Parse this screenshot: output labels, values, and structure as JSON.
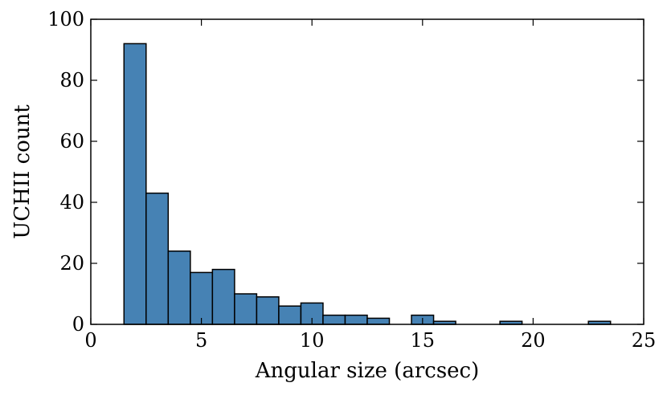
{
  "chart_data": {
    "type": "bar",
    "title": "",
    "xlabel": "Angular size (arcsec)",
    "ylabel": "UCHII count",
    "xlim": [
      0,
      25
    ],
    "ylim": [
      0,
      100
    ],
    "xticks": [
      "0",
      "5",
      "10",
      "15",
      "20",
      "25"
    ],
    "yticks": [
      "0",
      "20",
      "40",
      "60",
      "80",
      "100"
    ],
    "bar_color": "#4682b4",
    "edge_color": "#000000",
    "grid": false,
    "bins": [
      {
        "start": 1.5,
        "end": 2.5,
        "value": 92
      },
      {
        "start": 2.5,
        "end": 3.5,
        "value": 43
      },
      {
        "start": 3.5,
        "end": 4.5,
        "value": 24
      },
      {
        "start": 4.5,
        "end": 5.5,
        "value": 17
      },
      {
        "start": 5.5,
        "end": 6.5,
        "value": 18
      },
      {
        "start": 6.5,
        "end": 7.5,
        "value": 10
      },
      {
        "start": 7.5,
        "end": 8.5,
        "value": 9
      },
      {
        "start": 8.5,
        "end": 9.5,
        "value": 6
      },
      {
        "start": 9.5,
        "end": 10.5,
        "value": 7
      },
      {
        "start": 10.5,
        "end": 11.5,
        "value": 3
      },
      {
        "start": 11.5,
        "end": 12.5,
        "value": 3
      },
      {
        "start": 12.5,
        "end": 13.5,
        "value": 2
      },
      {
        "start": 14.5,
        "end": 15.5,
        "value": 3
      },
      {
        "start": 15.5,
        "end": 16.5,
        "value": 1
      },
      {
        "start": 18.5,
        "end": 19.5,
        "value": 1
      },
      {
        "start": 22.5,
        "end": 23.5,
        "value": 1
      }
    ]
  }
}
